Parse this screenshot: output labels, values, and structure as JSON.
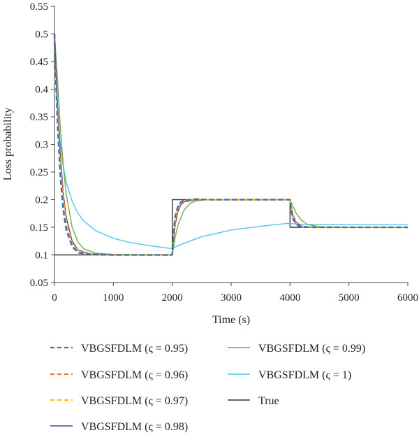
{
  "chart_data": {
    "type": "line",
    "title": "",
    "xlabel": "Time (s)",
    "ylabel": "Loss probability",
    "xlim": [
      0,
      6000
    ],
    "ylim": [
      0.05,
      0.55
    ],
    "xticks": [
      0,
      1000,
      2000,
      3000,
      4000,
      5000,
      6000
    ],
    "xtick_labels": [
      "0",
      "1000",
      "2000",
      "3000",
      "4000",
      "5000",
      "6000"
    ],
    "yticks": [
      0.05,
      0.1,
      0.15,
      0.2,
      0.25,
      0.3,
      0.35,
      0.4,
      0.45,
      0.5,
      0.55
    ],
    "ytick_labels": [
      "0.05",
      "0.1",
      "0.15",
      "0.2",
      "0.25",
      "0.3",
      "0.35",
      "0.4",
      "0.45",
      "0.5",
      "0.55"
    ],
    "grid": false,
    "legend_position": "bottom",
    "series": [
      {
        "name": "VBGSFDLM (ς = 0.95)",
        "color": "#2e75b6",
        "dash": "dashed",
        "x": [
          0,
          25,
          50,
          100,
          150,
          200,
          300,
          400,
          600,
          1000,
          1500,
          1950,
          2000,
          2025,
          2050,
          2100,
          2150,
          2200,
          2400,
          2600,
          3000,
          3500,
          3950,
          4000,
          4025,
          4050,
          4100,
          4150,
          4200,
          4400,
          5000,
          5500,
          6000
        ],
        "y": [
          0.5,
          0.41,
          0.34,
          0.24,
          0.18,
          0.145,
          0.115,
          0.104,
          0.101,
          0.1,
          0.1,
          0.1,
          0.1,
          0.145,
          0.17,
          0.19,
          0.196,
          0.199,
          0.201,
          0.2,
          0.2,
          0.2,
          0.2,
          0.2,
          0.178,
          0.165,
          0.156,
          0.152,
          0.151,
          0.15,
          0.15,
          0.15,
          0.15
        ]
      },
      {
        "name": "VBGSFDLM (ς = 0.96)",
        "color": "#ed7d31",
        "dash": "dashed",
        "x": [
          0,
          25,
          50,
          100,
          150,
          200,
          300,
          400,
          600,
          1000,
          1500,
          1950,
          2000,
          2025,
          2050,
          2100,
          2150,
          2200,
          2400,
          2600,
          3000,
          3500,
          3950,
          4000,
          4025,
          4050,
          4100,
          4150,
          4200,
          4400,
          5000,
          5500,
          6000
        ],
        "y": [
          0.5,
          0.42,
          0.35,
          0.25,
          0.19,
          0.15,
          0.117,
          0.105,
          0.101,
          0.1,
          0.1,
          0.1,
          0.1,
          0.14,
          0.167,
          0.188,
          0.195,
          0.198,
          0.201,
          0.2,
          0.2,
          0.2,
          0.2,
          0.2,
          0.18,
          0.167,
          0.157,
          0.153,
          0.151,
          0.15,
          0.15,
          0.15,
          0.15
        ]
      },
      {
        "name": "VBGSFDLM (ς = 0.97)",
        "color": "#ffc000",
        "dash": "dashed",
        "x": [
          0,
          25,
          50,
          100,
          150,
          200,
          300,
          400,
          600,
          1000,
          1500,
          1950,
          2000,
          2025,
          2050,
          2100,
          2150,
          2200,
          2400,
          2600,
          3000,
          3500,
          3950,
          4000,
          4025,
          4050,
          4100,
          4150,
          4200,
          4400,
          5000,
          5500,
          6000
        ],
        "y": [
          0.5,
          0.43,
          0.36,
          0.26,
          0.2,
          0.158,
          0.12,
          0.107,
          0.101,
          0.1,
          0.1,
          0.1,
          0.1,
          0.135,
          0.162,
          0.185,
          0.194,
          0.198,
          0.201,
          0.2,
          0.2,
          0.2,
          0.2,
          0.2,
          0.182,
          0.169,
          0.158,
          0.153,
          0.151,
          0.15,
          0.15,
          0.15,
          0.15
        ]
      },
      {
        "name": "VBGSFDLM (ς = 0.98)",
        "color": "#7030a0",
        "dash": "solid",
        "x": [
          0,
          25,
          50,
          100,
          150,
          200,
          300,
          400,
          600,
          1000,
          1500,
          1950,
          2000,
          2025,
          2050,
          2100,
          2150,
          2200,
          2400,
          2600,
          3000,
          3500,
          3950,
          4000,
          4025,
          4050,
          4100,
          4150,
          4200,
          4400,
          5000,
          5500,
          6000
        ],
        "y": [
          0.5,
          0.44,
          0.38,
          0.28,
          0.21,
          0.168,
          0.125,
          0.109,
          0.102,
          0.1,
          0.1,
          0.1,
          0.1,
          0.128,
          0.155,
          0.18,
          0.191,
          0.196,
          0.2,
          0.2,
          0.2,
          0.2,
          0.2,
          0.2,
          0.185,
          0.172,
          0.16,
          0.155,
          0.152,
          0.15,
          0.15,
          0.15,
          0.15
        ]
      },
      {
        "name": "VBGSFDLM (ς = 0.99)",
        "color": "#70ad47",
        "dash": "solid",
        "x": [
          0,
          25,
          50,
          100,
          150,
          200,
          300,
          400,
          500,
          700,
          1000,
          1500,
          1950,
          2000,
          2050,
          2100,
          2200,
          2300,
          2400,
          2600,
          3000,
          3500,
          3950,
          4000,
          4050,
          4100,
          4200,
          4300,
          4500,
          5000,
          5500,
          6000
        ],
        "y": [
          0.5,
          0.46,
          0.42,
          0.33,
          0.26,
          0.21,
          0.15,
          0.123,
          0.111,
          0.103,
          0.101,
          0.1,
          0.1,
          0.1,
          0.132,
          0.155,
          0.181,
          0.193,
          0.198,
          0.2,
          0.2,
          0.2,
          0.2,
          0.2,
          0.188,
          0.176,
          0.162,
          0.155,
          0.151,
          0.15,
          0.15,
          0.15
        ]
      },
      {
        "name": "VBGSFDLM (ς = 1)",
        "color": "#4fc3f7",
        "dash": "solid",
        "x": [
          0,
          25,
          50,
          100,
          150,
          200,
          300,
          400,
          500,
          700,
          1000,
          1300,
          1600,
          1950,
          2000,
          2200,
          2500,
          3000,
          3500,
          3950,
          4000,
          4100,
          4300,
          4500,
          5000,
          5500,
          6000
        ],
        "y": [
          0.5,
          0.42,
          0.37,
          0.3,
          0.26,
          0.232,
          0.197,
          0.175,
          0.161,
          0.144,
          0.13,
          0.122,
          0.117,
          0.112,
          0.112,
          0.121,
          0.133,
          0.145,
          0.152,
          0.157,
          0.157,
          0.156,
          0.155,
          0.155,
          0.155,
          0.155,
          0.155
        ]
      },
      {
        "name": "True",
        "color": "#333333",
        "dash": "solid",
        "x": [
          0,
          2000,
          2000,
          4000,
          4000,
          6000
        ],
        "y": [
          0.1,
          0.1,
          0.2,
          0.2,
          0.15,
          0.15
        ]
      }
    ]
  }
}
